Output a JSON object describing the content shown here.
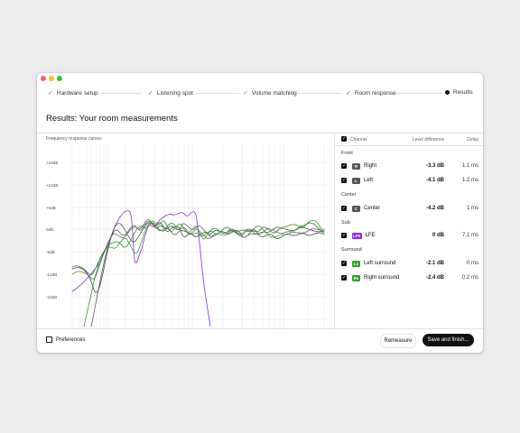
{
  "window": {
    "traffic_lights": [
      "#fe5f57",
      "#febc2e",
      "#28c840"
    ]
  },
  "steps": [
    {
      "label": "Hardware setup",
      "state": "done"
    },
    {
      "label": "Listening spot",
      "state": "done"
    },
    {
      "label": "Volume matching",
      "state": "done"
    },
    {
      "label": "Room response",
      "state": "done"
    },
    {
      "label": "Results",
      "state": "current"
    }
  ],
  "page_title": "Results: Your room measurements",
  "chart": {
    "label": "Frequency response curves",
    "y_ticks": [
      "+18dB",
      "+12dB",
      "+6dB",
      "0dB",
      "-6dB",
      "-12dB",
      "-18dB"
    ],
    "colors": {
      "front": "#4a4a4a",
      "center": "#6e6e6e",
      "lfe": "#8a2be2",
      "surround": "#33a02c"
    }
  },
  "panel": {
    "headers": {
      "channel": "Channel",
      "level": "Level difference",
      "delay": "Delay"
    },
    "groups": [
      {
        "name": "Front",
        "rows": [
          {
            "badge": "R",
            "badge_color": "#555555",
            "name": "Right",
            "level": "-3.3 dB",
            "delay": "1.1 ms"
          },
          {
            "badge": "L",
            "badge_color": "#555555",
            "name": "Left",
            "level": "-4.1 dB",
            "delay": "1.2 ms"
          }
        ]
      },
      {
        "name": "Center",
        "rows": [
          {
            "badge": "C",
            "badge_color": "#555555",
            "name": "Center",
            "level": "-4.2 dB",
            "delay": "1 ms"
          }
        ]
      },
      {
        "name": "Sub",
        "rows": [
          {
            "badge": "LFE",
            "badge_color": "#8a2be2",
            "name": "LFE",
            "level": "0 dB",
            "delay": "7.1 ms"
          }
        ]
      },
      {
        "name": "Surround",
        "rows": [
          {
            "badge": "Ls",
            "badge_color": "#33a02c",
            "name": "Left surround",
            "level": "-2.1 dB",
            "delay": "0 ms"
          },
          {
            "badge": "Rs",
            "badge_color": "#33a02c",
            "name": "Right surround",
            "level": "-2.4 dB",
            "delay": "0.2 ms"
          }
        ]
      }
    ]
  },
  "footer": {
    "preferences": "Preferences",
    "remeasure": "Remeasure",
    "save_finish": "Save and finish..."
  }
}
